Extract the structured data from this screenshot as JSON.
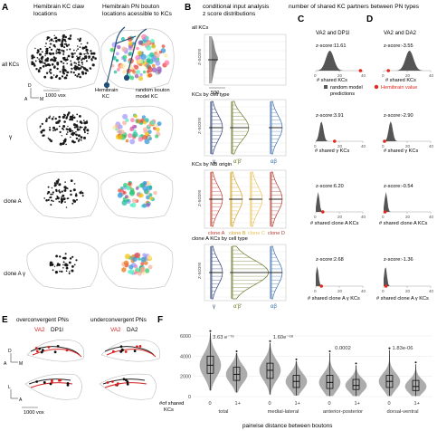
{
  "figure": {
    "panels": {
      "A": {
        "letter": "A",
        "title1_l1": "Hemibrain KC claw",
        "title1_l2": "locations",
        "title2_l1": "Hemibrain PN bouton",
        "title2_l2": "locations acessible to KCs",
        "rows": [
          "all KCs",
          "γ",
          "clone A",
          "clone A γ"
        ],
        "labels": {
          "hemibrain_kc_l1": "Hemibrain",
          "hemibrain_kc_l2": "KC",
          "random_l1": "random bouton",
          "random_l2": "model KC",
          "scale": "1000 vox",
          "axis_d": "D",
          "axis_a": "A",
          "axis_m": "M"
        }
      },
      "B": {
        "letter": "B",
        "title_l1": "conditional input analysis",
        "title_l2": "z score distributions",
        "sections": [
          "all KCs",
          "KCs by cell type",
          "KCs by NB origin",
          "clone A KCs by cell type"
        ],
        "ylabel": "z-score",
        "scale_label": "500",
        "type_labels": [
          "γ",
          "α'β'",
          "αβ"
        ],
        "clone_labels": [
          "clone A",
          "clone B",
          "clone C",
          "clone D"
        ],
        "clone_colors": [
          "#c0392b",
          "#d4a32a",
          "#e8c25a",
          "#b03a2e"
        ],
        "type_colors": [
          "#2c3e73",
          "#6b7a2b",
          "#3a6fb0"
        ]
      },
      "CD": {
        "title": "number of shared KC partners between PN types",
        "C_letter": "C",
        "D_letter": "D",
        "C_subtitle": "VA2 and DP1l",
        "D_subtitle": "VA2 and DA2",
        "C_z": [
          "z-score:11.61",
          "z-score:3.91",
          "z-score:6.20",
          "z-score:2.68"
        ],
        "D_z": [
          "z-score:-3.55",
          "z-score:-2.90",
          "z-score:-0.54",
          "z-score:-1.36"
        ],
        "C_xlabels": [
          "# shared KCs",
          "# shared γ KCs",
          "# shared clone A KCs",
          "# shared clone A γ KCs"
        ],
        "D_xlabels": [
          "# shared KCs",
          "# shared γ KCs",
          "# shared clone A KCs",
          "# shared clone A γ KCs"
        ],
        "xticks": [
          "0",
          "20",
          "40"
        ],
        "legend_model_l1": "random model",
        "legend_model_l2": "predictions",
        "legend_hemibrain": "Hemibrain value",
        "hemibrain_color": "#e0281e",
        "model_color": "#555555"
      },
      "E": {
        "letter": "E",
        "title_over": "overconvergent PNs",
        "title_under": "underconvergent PNs",
        "over_pn1": "VA2",
        "over_pn2": "DP1l",
        "under_pn1": "VA2",
        "under_pn2": "DA2",
        "scale": "1000 vox",
        "axis_d": "D",
        "axis_a": "A",
        "axis_m": "M",
        "axis_l": "L"
      },
      "F": {
        "letter": "F",
        "ylabel": "pairwise distance between boutons",
        "groups": [
          "total",
          "medial-lateral",
          "anterior-posterior",
          "dorsal-ventral"
        ],
        "pvalues": [
          "3.63 e⁻⁷⁶",
          "1.60e⁻⁶⁸",
          "0.0002",
          "1.83e-06"
        ],
        "xcat": [
          "0",
          "1+"
        ],
        "xtitle_l1": "#of shared",
        "xtitle_l2": "KCs",
        "yticks": [
          "0",
          "2000",
          "4000",
          "6000"
        ]
      }
    }
  },
  "chart_data": {
    "type": "box",
    "title": "",
    "xlabel": "pairwise distance between boutons",
    "ylabel": "",
    "ylim": [
      0,
      6800
    ],
    "grid": true,
    "groups": [
      "total",
      "medial-lateral",
      "anterior-posterior",
      "dorsal-ventral"
    ],
    "categories": [
      "0",
      "1+"
    ],
    "pvalues": [
      "3.63 e⁻⁷⁶",
      "1.60e⁻⁶⁸",
      "0.0002",
      "1.83e-06"
    ],
    "series": [
      {
        "group": "total",
        "category": "0",
        "q1": 2300,
        "median": 3100,
        "q3": 4000,
        "whisker_low": 600,
        "whisker_high": 6300
      },
      {
        "group": "total",
        "category": "1+",
        "q1": 1600,
        "median": 2200,
        "q3": 2900,
        "whisker_low": 400,
        "whisker_high": 4300
      },
      {
        "group": "medial-lateral",
        "category": "0",
        "q1": 1800,
        "median": 2600,
        "q3": 3300,
        "whisker_low": 200,
        "whisker_high": 5300
      },
      {
        "group": "medial-lateral",
        "category": "1+",
        "q1": 900,
        "median": 1500,
        "q3": 2100,
        "whisker_low": 100,
        "whisker_high": 3500
      },
      {
        "group": "anterior-posterior",
        "category": "0",
        "q1": 800,
        "median": 1400,
        "q3": 2100,
        "whisker_low": 50,
        "whisker_high": 4300
      },
      {
        "group": "anterior-posterior",
        "category": "1+",
        "q1": 700,
        "median": 1100,
        "q3": 1700,
        "whisker_low": 50,
        "whisker_high": 3100
      },
      {
        "group": "dorsal-ventral",
        "category": "0",
        "q1": 900,
        "median": 1500,
        "q3": 2100,
        "whisker_low": 50,
        "whisker_high": 4600
      },
      {
        "group": "dorsal-ventral",
        "category": "1+",
        "q1": 600,
        "median": 1000,
        "q3": 1600,
        "whisker_low": 50,
        "whisker_high": 3200
      }
    ]
  }
}
